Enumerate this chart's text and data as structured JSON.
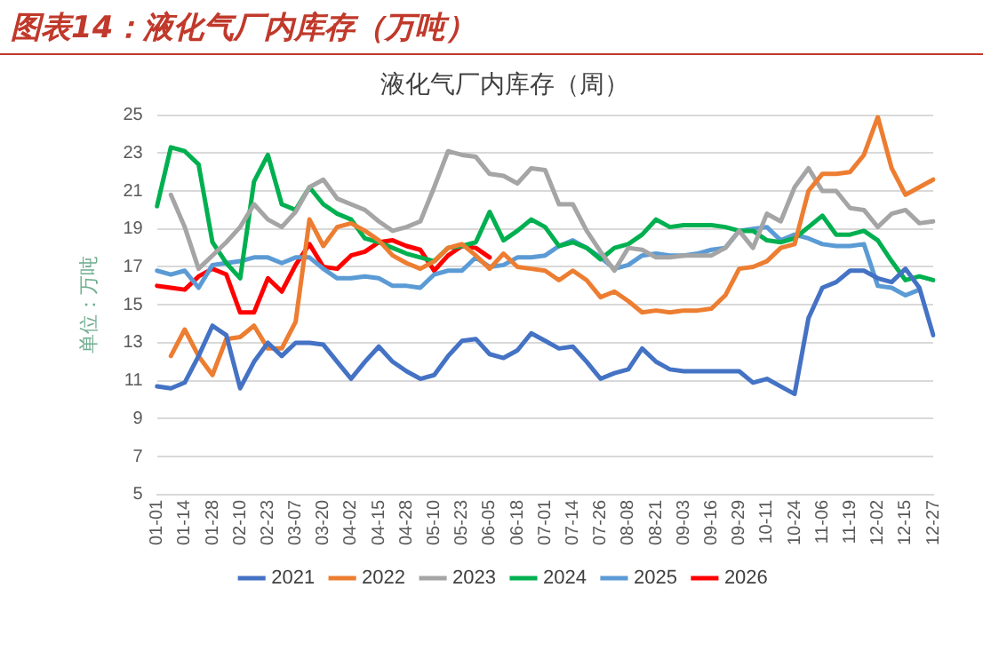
{
  "chart_data": {
    "type": "line",
    "title": "图表14：液化气厂内库存（万吨）",
    "subtitle": "液化气厂内库存（周）",
    "ylabel": "单位：万吨",
    "categories": [
      "01-01",
      null,
      "01-14",
      null,
      "01-28",
      null,
      "02-10",
      null,
      "02-23",
      null,
      "03-07",
      null,
      "03-20",
      null,
      "04-02",
      null,
      "04-15",
      null,
      "04-28",
      null,
      "05-10",
      null,
      "05-23",
      null,
      "06-05",
      null,
      "06-18",
      null,
      "07-01",
      null,
      "07-14",
      null,
      "07-26",
      null,
      "08-08",
      null,
      "08-21",
      null,
      "09-03",
      null,
      "09-16",
      null,
      "09-29",
      null,
      "10-11",
      null,
      "10-24",
      null,
      "11-06",
      null,
      "11-19",
      null,
      "12-02",
      null,
      "12-15",
      null,
      "12-27"
    ],
    "series": [
      {
        "name": "2021",
        "color": "#4472c4",
        "values": [
          10.7,
          10.6,
          10.9,
          12.3,
          13.9,
          13.4,
          10.6,
          12.0,
          13.0,
          12.3,
          13.0,
          13.0,
          12.9,
          12.0,
          11.1,
          12.0,
          12.8,
          12.0,
          11.5,
          11.1,
          11.3,
          12.3,
          13.1,
          13.2,
          12.4,
          12.2,
          12.6,
          13.5,
          13.1,
          12.7,
          12.8,
          12.0,
          11.1,
          11.4,
          11.6,
          12.7,
          12.0,
          11.6,
          11.5,
          11.5,
          11.5,
          11.5,
          11.5,
          10.9,
          11.1,
          10.7,
          10.3,
          14.3,
          15.9,
          16.2,
          16.8,
          16.8,
          16.4,
          16.2,
          16.9,
          15.9,
          13.4
        ]
      },
      {
        "name": "2022",
        "color": "#ed7d31",
        "values": [
          null,
          12.3,
          13.7,
          12.3,
          11.3,
          13.2,
          13.3,
          13.9,
          12.7,
          12.7,
          14.1,
          19.5,
          18.1,
          19.1,
          19.3,
          18.9,
          18.4,
          17.6,
          17.2,
          16.9,
          17.3,
          18.0,
          18.2,
          17.6,
          16.9,
          17.7,
          17.0,
          16.9,
          16.8,
          16.3,
          16.8,
          16.3,
          15.4,
          15.7,
          15.2,
          14.6,
          14.7,
          14.6,
          14.7,
          14.7,
          14.8,
          15.5,
          16.9,
          17.0,
          17.3,
          18.0,
          18.2,
          21.0,
          21.9,
          21.9,
          22.0,
          22.9,
          24.9,
          22.2,
          20.8,
          21.2,
          21.6
        ]
      },
      {
        "name": "2023",
        "color": "#a5a5a5",
        "values": [
          null,
          20.8,
          19.1,
          16.9,
          17.6,
          18.3,
          19.1,
          20.3,
          19.5,
          19.1,
          19.9,
          21.2,
          21.6,
          20.6,
          20.3,
          20.0,
          19.4,
          18.9,
          19.1,
          19.4,
          21.2,
          23.1,
          22.9,
          22.8,
          21.9,
          21.8,
          21.4,
          22.2,
          22.1,
          20.3,
          20.3,
          18.9,
          17.8,
          16.8,
          18.0,
          17.9,
          17.5,
          17.5,
          17.6,
          17.6,
          17.6,
          18.0,
          18.9,
          18.0,
          19.8,
          19.4,
          21.2,
          22.2,
          21.0,
          21.0,
          20.1,
          20.0,
          19.1,
          19.8,
          20.0,
          19.3,
          19.4
        ]
      },
      {
        "name": "2024",
        "color": "#00b050",
        "values": [
          20.2,
          23.3,
          23.1,
          22.4,
          18.3,
          17.2,
          16.4,
          21.5,
          22.9,
          20.3,
          20.0,
          21.2,
          20.3,
          19.8,
          19.5,
          18.5,
          18.3,
          18.0,
          17.7,
          17.5,
          17.3,
          18.0,
          18.1,
          18.3,
          19.9,
          18.4,
          18.9,
          19.5,
          19.1,
          18.1,
          18.3,
          18.0,
          17.4,
          18.0,
          18.2,
          18.7,
          19.5,
          19.1,
          19.2,
          19.2,
          19.2,
          19.1,
          18.9,
          18.9,
          18.4,
          18.3,
          18.5,
          19.1,
          19.7,
          18.7,
          18.7,
          18.9,
          18.4,
          17.3,
          16.3,
          16.5,
          16.3
        ]
      },
      {
        "name": "2025",
        "color": "#5b9bd5",
        "values": [
          16.8,
          16.6,
          16.8,
          15.9,
          17.1,
          17.2,
          17.3,
          17.5,
          17.5,
          17.2,
          17.5,
          17.5,
          16.9,
          16.4,
          16.4,
          16.5,
          16.4,
          16.0,
          16.0,
          15.9,
          16.6,
          16.8,
          16.8,
          17.5,
          17.0,
          17.1,
          17.5,
          17.5,
          17.6,
          18.1,
          18.4,
          18.0,
          17.5,
          16.9,
          17.1,
          17.6,
          17.7,
          17.6,
          17.6,
          17.7,
          17.9,
          18.0,
          18.9,
          19.0,
          19.1,
          18.4,
          18.7,
          18.5,
          18.2,
          18.1,
          18.1,
          18.2,
          16.0,
          15.9,
          15.5,
          15.8,
          null
        ]
      },
      {
        "name": "2026",
        "color": "#ff0000",
        "values": [
          16.0,
          15.9,
          15.8,
          16.5,
          16.9,
          16.6,
          14.6,
          14.6,
          16.4,
          15.7,
          17.1,
          18.2,
          17.0,
          16.9,
          17.6,
          17.8,
          18.3,
          18.4,
          18.1,
          17.9,
          16.8,
          17.6,
          18.1,
          18.0,
          17.5,
          null,
          null,
          null,
          null,
          null,
          null,
          null,
          null,
          null,
          null,
          null,
          null,
          null,
          null,
          null,
          null,
          null,
          null,
          null,
          null,
          null,
          null,
          null,
          null,
          null,
          null,
          null,
          null,
          null,
          null,
          null,
          null
        ]
      }
    ],
    "ylim": [
      5,
      25
    ],
    "yticks": [
      5,
      7,
      9,
      11,
      13,
      15,
      17,
      19,
      21,
      23,
      25
    ],
    "grid": "y",
    "legend": "bottom",
    "marker": "none",
    "line_style": "solid"
  }
}
